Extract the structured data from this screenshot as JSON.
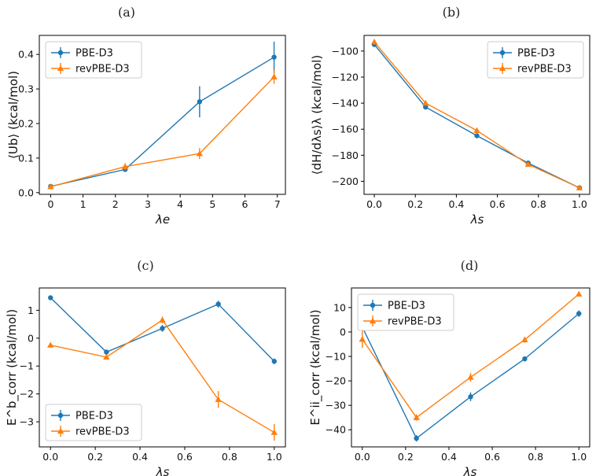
{
  "colors": {
    "PBE-D3": "#1f77b4",
    "revPBE-D3": "#ff7f0e"
  },
  "chart_data": [
    {
      "panel": "(a)",
      "type": "line",
      "xlabel": "λe",
      "ylabel": "⟨Ub⟩ (kcal/mol)",
      "xlim": [
        -0.35,
        7.25
      ],
      "ylim": [
        -0.005,
        0.455
      ],
      "xticks": [
        0,
        1,
        2,
        3,
        4,
        5,
        6,
        7
      ],
      "yticks": [
        0.0,
        0.1,
        0.2,
        0.3,
        0.4
      ],
      "ytick_labels": [
        "0.0",
        "0.1",
        "0.2",
        "0.3",
        "0.4"
      ],
      "legend": "top-left",
      "series": [
        {
          "name": "PBE-D3",
          "marker": "circle",
          "x": [
            0,
            2.3,
            4.6,
            6.9
          ],
          "y": [
            0.018,
            0.067,
            0.263,
            0.392
          ],
          "err": [
            0.004,
            0.006,
            0.045,
            0.045
          ]
        },
        {
          "name": "revPBE-D3",
          "marker": "triangle",
          "x": [
            0,
            2.3,
            4.6,
            6.9
          ],
          "y": [
            0.017,
            0.075,
            0.113,
            0.335
          ],
          "err": [
            0.004,
            0.01,
            0.016,
            0.02
          ]
        }
      ]
    },
    {
      "panel": "(b)",
      "type": "line",
      "xlabel": "λs",
      "ylabel": "⟨dH/dλs⟩λ (kcal/mol)",
      "xlim": [
        -0.05,
        1.05
      ],
      "ylim": [
        -210,
        -88
      ],
      "xticks": [
        0.0,
        0.2,
        0.4,
        0.6,
        0.8,
        1.0
      ],
      "xtick_labels": [
        "0.0",
        "0.2",
        "0.4",
        "0.6",
        "0.8",
        "1.0"
      ],
      "yticks": [
        -100,
        -120,
        -140,
        -160,
        -180,
        -200
      ],
      "legend": "top-right",
      "series": [
        {
          "name": "PBE-D3",
          "marker": "circle",
          "x": [
            0,
            0.25,
            0.5,
            0.75,
            1.0
          ],
          "y": [
            -95,
            -143,
            -165,
            -186,
            -205
          ],
          "err": [
            1,
            1,
            1,
            1,
            1
          ]
        },
        {
          "name": "revPBE-D3",
          "marker": "triangle",
          "x": [
            0,
            0.25,
            0.5,
            0.75,
            1.0
          ],
          "y": [
            -93,
            -140,
            -161,
            -187,
            -205
          ],
          "err": [
            1,
            1,
            1,
            1,
            1
          ]
        }
      ]
    },
    {
      "panel": "(c)",
      "type": "line",
      "xlabel": "λs",
      "ylabel": "E^b_corr (kcal/mol)",
      "xlim": [
        -0.05,
        1.05
      ],
      "ylim": [
        -3.9,
        1.8
      ],
      "xticks": [
        0.0,
        0.2,
        0.4,
        0.6,
        0.8,
        1.0
      ],
      "xtick_labels": [
        "0.0",
        "0.2",
        "0.4",
        "0.6",
        "0.8",
        "1.0"
      ],
      "yticks": [
        1,
        0,
        -1,
        -2,
        -3
      ],
      "legend": "bottom-left",
      "series": [
        {
          "name": "PBE-D3",
          "marker": "circle",
          "x": [
            0,
            0.25,
            0.5,
            0.75,
            1.0
          ],
          "y": [
            1.45,
            -0.5,
            0.35,
            1.22,
            -0.83
          ],
          "err": [
            0.08,
            0.08,
            0.12,
            0.12,
            0.1
          ]
        },
        {
          "name": "revPBE-D3",
          "marker": "triangle",
          "x": [
            0,
            0.25,
            0.5,
            0.75,
            1.0
          ],
          "y": [
            -0.25,
            -0.68,
            0.65,
            -2.2,
            -3.38
          ],
          "err": [
            0.08,
            0.08,
            0.12,
            0.3,
            0.3
          ]
        }
      ]
    },
    {
      "panel": "(d)",
      "type": "line",
      "xlabel": "λs",
      "ylabel": "E^ii_corr (kcal/mol)",
      "xlim": [
        -0.05,
        1.05
      ],
      "ylim": [
        -47,
        18
      ],
      "xticks": [
        0.0,
        0.2,
        0.4,
        0.6,
        0.8,
        1.0
      ],
      "xtick_labels": [
        "0.0",
        "0.2",
        "0.4",
        "0.6",
        "0.8",
        "1.0"
      ],
      "yticks": [
        10,
        0,
        -10,
        -20,
        -30,
        -40
      ],
      "legend": "top-left",
      "series": [
        {
          "name": "PBE-D3",
          "marker": "circle",
          "x": [
            0,
            0.25,
            0.5,
            0.75,
            1.0
          ],
          "y": [
            2,
            -43.5,
            -26.5,
            -11,
            7.5
          ],
          "err": [
            1.5,
            1.3,
            1.8,
            1.0,
            1.3
          ]
        },
        {
          "name": "revPBE-D3",
          "marker": "triangle",
          "x": [
            0,
            0.25,
            0.5,
            0.75,
            1.0
          ],
          "y": [
            -3,
            -35,
            -18.5,
            -3.2,
            15.5
          ],
          "err": [
            3.5,
            1.3,
            1.8,
            1.2,
            1.0
          ]
        }
      ]
    }
  ]
}
